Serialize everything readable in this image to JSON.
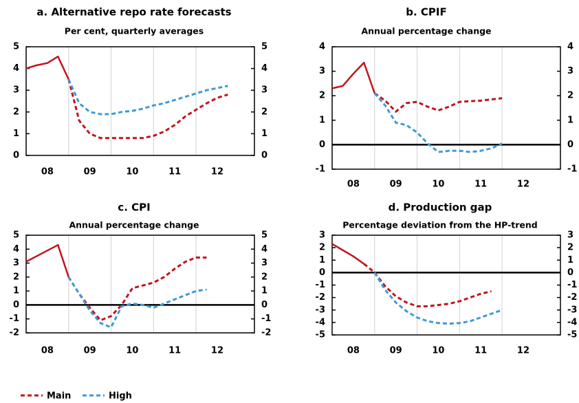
{
  "chart_data": [
    {
      "type": "line",
      "title": "a. Alternative repo rate forecasts",
      "subtitle": "Per cent, quarterly averages",
      "categories": [
        null,
        "08",
        null,
        null,
        null,
        "09",
        null,
        null,
        null,
        "10",
        null,
        null,
        null,
        "11",
        null,
        null,
        null,
        "12",
        null,
        null
      ],
      "forecast_from": 4,
      "series": [
        {
          "name": "Main",
          "color": "#c0141c",
          "values": [
            4,
            4.15,
            4.25,
            4.55,
            3.5,
            1.6,
            1,
            0.8,
            0.8,
            0.8,
            0.8,
            0.8,
            0.9,
            1.1,
            1.4,
            1.8,
            2.1,
            2.4,
            2.65,
            2.8
          ]
        },
        {
          "name": "High",
          "color": "#3d9ad6",
          "values": [
            null,
            null,
            null,
            null,
            3.5,
            2.4,
            2,
            1.9,
            1.9,
            2,
            2.05,
            2.15,
            2.3,
            2.4,
            2.55,
            2.7,
            2.85,
            3,
            3.1,
            3.2
          ]
        }
      ],
      "ylim": [
        0,
        5
      ],
      "yticks": [
        0,
        1,
        2,
        3,
        4,
        5
      ],
      "grid": "x"
    },
    {
      "type": "line",
      "title": "b. CPIF",
      "subtitle": "Annual percentage change",
      "categories": [
        null,
        "08",
        null,
        null,
        null,
        "09",
        null,
        null,
        null,
        "10",
        null,
        null,
        null,
        "11",
        null,
        null,
        null,
        "12",
        null,
        null
      ],
      "forecast_from": 4,
      "series": [
        {
          "name": "Main",
          "color": "#c0141c",
          "values": [
            2.3,
            2.4,
            2.9,
            3.35,
            2.1,
            1.8,
            1.35,
            1.7,
            1.75,
            1.55,
            1.4,
            1.55,
            1.75,
            1.78,
            1.8,
            1.85,
            1.9,
            null,
            null,
            null
          ]
        },
        {
          "name": "High",
          "color": "#3d9ad6",
          "values": [
            null,
            null,
            null,
            null,
            2.1,
            1.6,
            0.9,
            0.8,
            0.5,
            0.05,
            -0.3,
            -0.25,
            -0.25,
            -0.3,
            -0.25,
            -0.15,
            0.05,
            null,
            null,
            null
          ]
        }
      ],
      "ylim": [
        -1,
        4
      ],
      "yticks": [
        -1,
        0,
        1,
        2,
        3,
        4
      ],
      "grid": "x"
    },
    {
      "type": "line",
      "title": "c. CPI",
      "subtitle": "Annual percentage change",
      "categories": [
        null,
        "08",
        null,
        null,
        null,
        "09",
        null,
        null,
        null,
        "10",
        null,
        null,
        null,
        "11",
        null,
        null,
        null,
        "12",
        null,
        null
      ],
      "forecast_from": 4,
      "series": [
        {
          "name": "Main",
          "color": "#c0141c",
          "values": [
            3.1,
            3.5,
            3.9,
            4.3,
            2,
            0.8,
            -0.2,
            -1.1,
            -0.8,
            0,
            1.2,
            1.4,
            1.6,
            2,
            2.6,
            3.1,
            3.4,
            3.4,
            null,
            null
          ]
        },
        {
          "name": "High",
          "color": "#3d9ad6",
          "values": [
            null,
            null,
            null,
            null,
            2,
            0.8,
            -0.4,
            -1.3,
            -1.6,
            -0.1,
            0.1,
            0,
            -0.2,
            0.1,
            0.4,
            0.7,
            1,
            1.1,
            null,
            null
          ]
        }
      ],
      "ylim": [
        -2,
        5
      ],
      "yticks": [
        -2,
        -1,
        0,
        1,
        2,
        3,
        4,
        5
      ],
      "grid": "x"
    },
    {
      "type": "line",
      "title": "d. Production gap",
      "subtitle": "Percentage deviation from the HP-trend",
      "categories": [
        null,
        "08",
        null,
        null,
        null,
        "09",
        null,
        null,
        null,
        "10",
        null,
        null,
        null,
        "11",
        null,
        null,
        null,
        "12",
        null,
        null
      ],
      "forecast_from": 3,
      "series": [
        {
          "name": "Main",
          "color": "#c0141c",
          "values": [
            2.3,
            1.8,
            1.3,
            0.7,
            0,
            -1.1,
            -1.9,
            -2.4,
            -2.7,
            -2.7,
            -2.6,
            -2.5,
            -2.3,
            -2,
            -1.7,
            -1.5,
            null,
            null,
            null,
            null
          ]
        },
        {
          "name": "High",
          "color": "#3d9ad6",
          "values": [
            null,
            null,
            null,
            null,
            0,
            -1.4,
            -2.4,
            -3.1,
            -3.6,
            -3.9,
            -4.05,
            -4.1,
            -4.05,
            -3.9,
            -3.6,
            -3.3,
            -3,
            null,
            null,
            null
          ]
        }
      ],
      "ylim": [
        -5,
        3
      ],
      "yticks": [
        -5,
        -4,
        -3,
        -2,
        -1,
        0,
        1,
        2,
        3
      ],
      "grid": "x"
    }
  ]
}
